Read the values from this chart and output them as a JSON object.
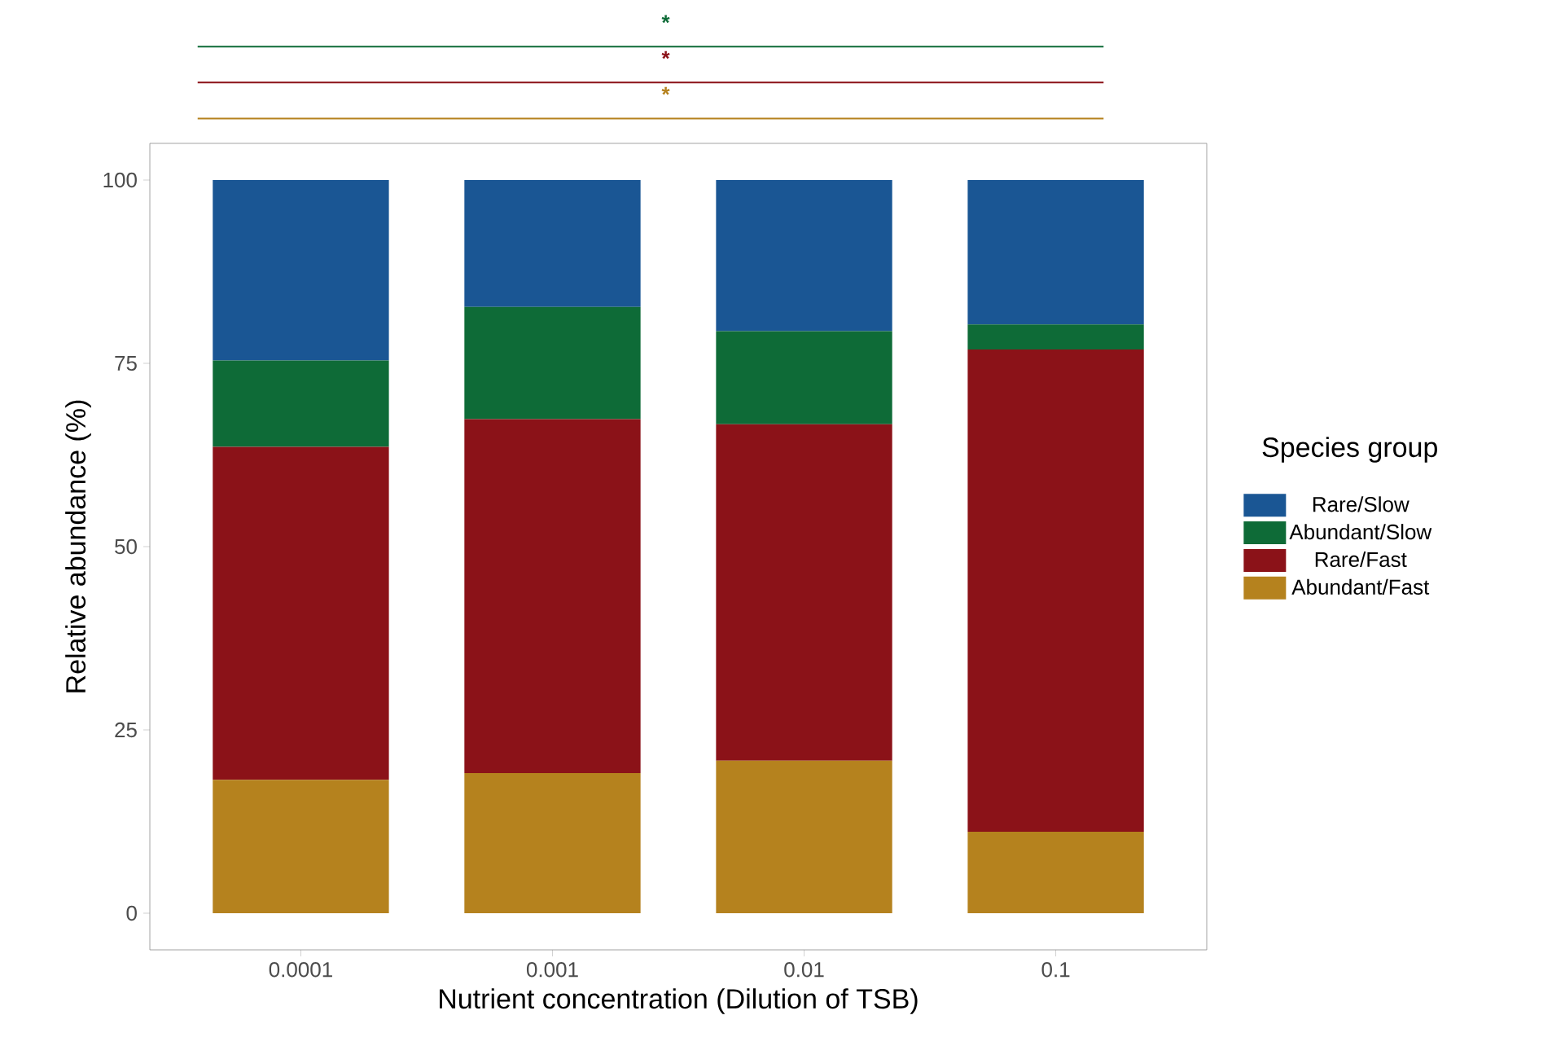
{
  "chart_data": {
    "type": "bar",
    "stacked": true,
    "xlabel": "Nutrient concentration (Dilution of TSB)",
    "ylabel": "Relative abundance (%)",
    "legend_title": "Species group",
    "legend": "right",
    "grid": false,
    "categories": [
      "0.0001",
      "0.001",
      "0.01",
      "0.1"
    ],
    "series": [
      {
        "name": "Abundant/Fast",
        "color": "#b5821e",
        "values": [
          18.2,
          19.1,
          20.8,
          11.1
        ]
      },
      {
        "name": "Rare/Fast",
        "color": "#8b1218",
        "values": [
          45.4,
          48.3,
          45.9,
          65.8
        ]
      },
      {
        "name": "Abundant/Slow",
        "color": "#0e6b37",
        "values": [
          11.8,
          15.3,
          12.7,
          3.4
        ]
      },
      {
        "name": "Rare/Slow",
        "color": "#1a5694",
        "values": [
          24.6,
          17.3,
          20.6,
          19.7
        ]
      }
    ],
    "ylim": [
      -5,
      105
    ],
    "yticks": [
      0,
      25,
      50,
      75,
      100
    ],
    "annotations": [
      "*",
      "*",
      "*"
    ]
  }
}
